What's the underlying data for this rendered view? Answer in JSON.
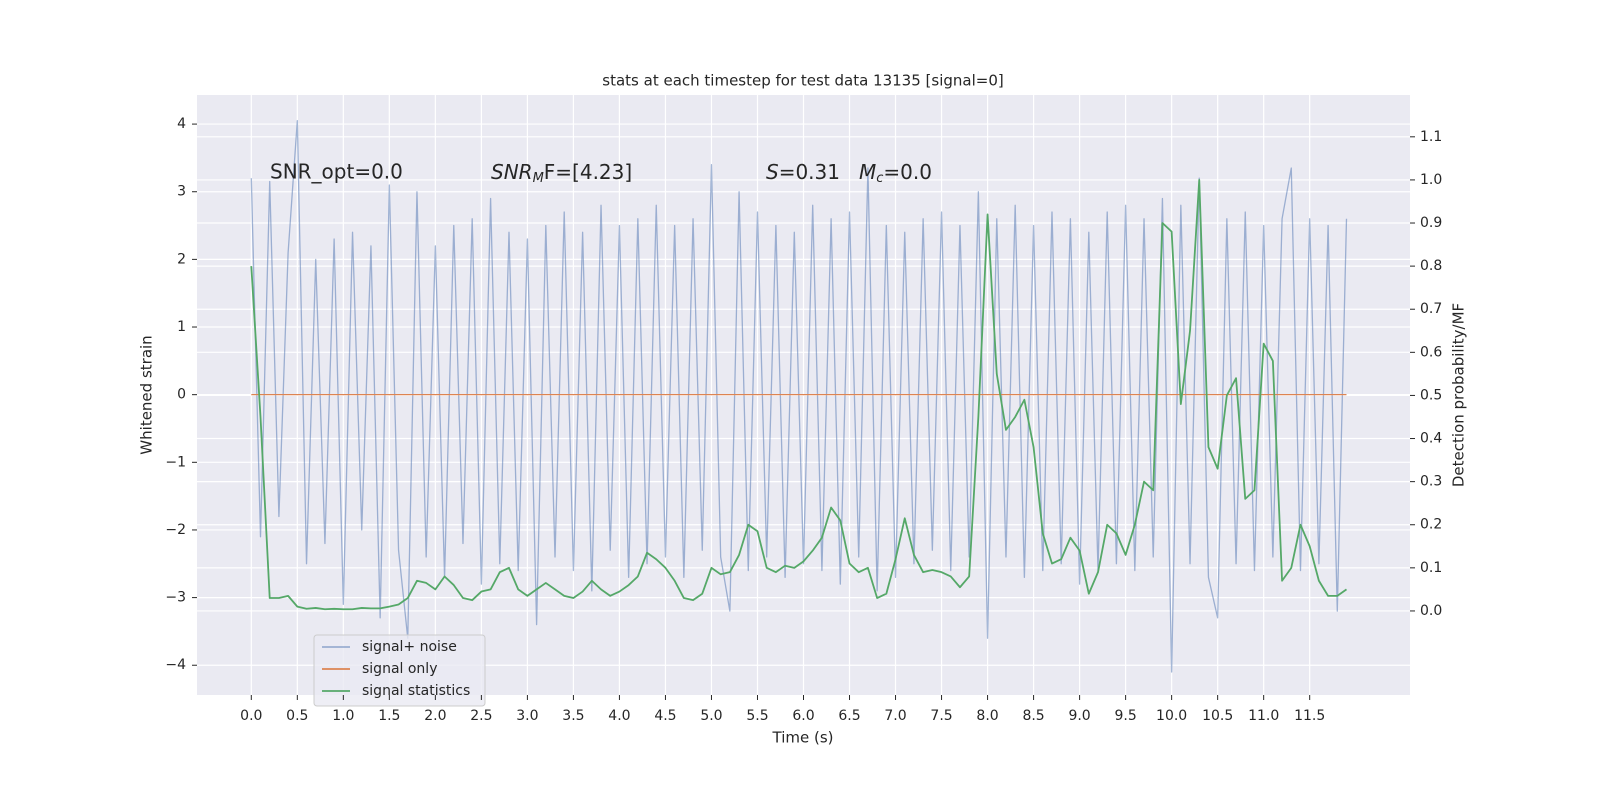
{
  "chart_data": {
    "type": "line",
    "title": "stats at each timestep for test data 13135 [signal=0]",
    "xlabel": "Time (s)",
    "ylabel": "Whitened strain",
    "y2label": "Detection probability/MF",
    "annotations": [
      "SNR_opt=0.0",
      [
        "SNR",
        "M",
        "F=[4.23]"
      ],
      [
        "S",
        "=0.31"
      ],
      [
        "M",
        "c",
        "=0.0"
      ]
    ],
    "x": [
      0.0,
      0.1,
      0.2,
      0.3,
      0.4,
      0.5,
      0.6,
      0.7,
      0.8,
      0.9,
      1.0,
      1.1,
      1.2,
      1.3,
      1.4,
      1.5,
      1.6,
      1.7,
      1.8,
      1.9,
      2.0,
      2.1,
      2.2,
      2.3,
      2.4,
      2.5,
      2.6,
      2.7,
      2.8,
      2.9,
      3.0,
      3.1,
      3.2,
      3.3,
      3.4,
      3.5,
      3.6,
      3.7,
      3.8,
      3.9,
      4.0,
      4.1,
      4.2,
      4.3,
      4.4,
      4.5,
      4.6,
      4.7,
      4.8,
      4.9,
      5.0,
      5.1,
      5.2,
      5.3,
      5.4,
      5.5,
      5.6,
      5.7,
      5.8,
      5.9,
      6.0,
      6.1,
      6.2,
      6.3,
      6.4,
      6.5,
      6.6,
      6.7,
      6.8,
      6.9,
      7.0,
      7.1,
      7.2,
      7.3,
      7.4,
      7.5,
      7.6,
      7.7,
      7.8,
      7.9,
      8.0,
      8.1,
      8.2,
      8.3,
      8.4,
      8.5,
      8.6,
      8.7,
      8.8,
      8.9,
      9.0,
      9.1,
      9.2,
      9.3,
      9.4,
      9.5,
      9.6,
      9.7,
      9.8,
      9.9,
      10.0,
      10.1,
      10.2,
      10.3,
      10.4,
      10.5,
      10.6,
      10.7,
      10.8,
      10.9,
      11.0,
      11.1,
      11.2,
      11.3,
      11.4,
      11.5,
      11.6,
      11.7,
      11.8,
      11.9
    ],
    "series": [
      {
        "name": "signal+ noise",
        "color": "#4c72b0",
        "opacity": 0.5,
        "values": [
          3.2,
          -2.1,
          3.15,
          -1.8,
          2.1,
          4.05,
          -2.5,
          2.0,
          -2.2,
          2.3,
          -3.1,
          2.4,
          -2.0,
          2.2,
          -3.3,
          3.1,
          -2.3,
          -3.6,
          3.0,
          -2.4,
          2.2,
          -2.7,
          2.5,
          -2.2,
          2.6,
          -2.8,
          2.9,
          -2.5,
          2.4,
          -2.6,
          2.3,
          -3.4,
          2.5,
          -2.4,
          2.7,
          -2.6,
          2.4,
          -2.9,
          2.8,
          -2.3,
          2.5,
          -2.7,
          2.6,
          -2.5,
          2.8,
          -2.4,
          2.5,
          -2.7,
          2.6,
          -2.3,
          3.4,
          -2.4,
          -3.2,
          3.0,
          -2.6,
          2.7,
          -2.4,
          2.5,
          -2.7,
          2.4,
          -2.5,
          2.8,
          -2.6,
          2.6,
          -2.8,
          2.7,
          -2.4,
          3.35,
          -2.9,
          2.5,
          -2.7,
          2.4,
          -2.5,
          2.6,
          -2.3,
          2.7,
          -2.6,
          2.5,
          -2.4,
          3.0,
          -3.6,
          2.6,
          -2.4,
          2.8,
          -2.7,
          2.5,
          -2.6,
          2.7,
          -2.5,
          2.6,
          -2.8,
          2.4,
          -2.6,
          2.7,
          -2.5,
          2.8,
          -2.6,
          2.6,
          -2.4,
          2.9,
          -4.1,
          2.8,
          -2.5,
          3.2,
          -2.7,
          -3.3,
          2.6,
          -2.5,
          2.7,
          -2.6,
          2.5,
          -2.4,
          2.6,
          3.35,
          -2.6,
          2.6,
          -2.5,
          2.5,
          -3.2,
          2.6
        ]
      },
      {
        "name": "signal only",
        "color": "#dd8452",
        "opacity": 1,
        "x": [
          0.0,
          11.9
        ],
        "values": [
          0,
          0
        ]
      },
      {
        "name": "signal statistics",
        "color": "#55a868",
        "opacity": 1,
        "axis": "y2",
        "values": [
          0.8,
          0.45,
          0.03,
          0.03,
          0.035,
          0.01,
          0.005,
          0.007,
          0.004,
          0.005,
          0.004,
          0.004,
          0.007,
          0.006,
          0.006,
          0.01,
          0.015,
          0.03,
          0.07,
          0.065,
          0.05,
          0.08,
          0.06,
          0.03,
          0.025,
          0.045,
          0.05,
          0.09,
          0.1,
          0.05,
          0.035,
          0.05,
          0.065,
          0.05,
          0.035,
          0.03,
          0.045,
          0.07,
          0.05,
          0.035,
          0.045,
          0.06,
          0.08,
          0.135,
          0.12,
          0.1,
          0.07,
          0.03,
          0.025,
          0.04,
          0.1,
          0.085,
          0.09,
          0.13,
          0.2,
          0.185,
          0.1,
          0.09,
          0.105,
          0.1,
          0.115,
          0.14,
          0.17,
          0.24,
          0.21,
          0.11,
          0.09,
          0.1,
          0.03,
          0.04,
          0.12,
          0.215,
          0.13,
          0.09,
          0.095,
          0.09,
          0.08,
          0.055,
          0.08,
          0.45,
          0.92,
          0.55,
          0.42,
          0.45,
          0.49,
          0.38,
          0.18,
          0.11,
          0.12,
          0.17,
          0.14,
          0.04,
          0.09,
          0.2,
          0.18,
          0.13,
          0.2,
          0.3,
          0.28,
          0.9,
          0.88,
          0.48,
          0.65,
          1.0,
          0.38,
          0.33,
          0.5,
          0.54,
          0.26,
          0.28,
          0.62,
          0.58,
          0.07,
          0.1,
          0.2,
          0.15,
          0.07,
          0.035,
          0.035,
          0.05
        ]
      }
    ],
    "xlim": [
      -0.59,
      12.59
    ],
    "xticks": [
      {
        "value": 0,
        "label": "0.0"
      },
      0.5,
      {
        "value": 1,
        "label": "1.0"
      },
      1.5,
      {
        "value": 2,
        "label": "2.0"
      },
      2.5,
      {
        "value": 3,
        "label": "3.0"
      },
      3.5,
      {
        "value": 4,
        "label": "4.0"
      },
      4.5,
      {
        "value": 5,
        "label": "5.0"
      },
      5.5,
      {
        "value": 6,
        "label": "6.0"
      },
      6.5,
      {
        "value": 7,
        "label": "7.0"
      },
      7.5,
      {
        "value": 8,
        "label": "8.0"
      },
      8.5,
      {
        "value": 9,
        "label": "9.0"
      },
      9.5,
      {
        "value": 10,
        "label": "10.0"
      },
      10.5,
      {
        "value": 11,
        "label": "11.0"
      },
      11.5
    ],
    "ylim": [
      -4.44,
      4.43
    ],
    "yticks": [
      {
        "value": -4,
        "label": "−4"
      },
      {
        "value": -3,
        "label": "−3"
      },
      {
        "value": -2,
        "label": "−2"
      },
      {
        "value": -1,
        "label": "−1"
      },
      0,
      1,
      2,
      3,
      4
    ],
    "y2lim": [
      -0.195,
      1.197
    ],
    "y2ticks": [
      {
        "value": 0,
        "label": "0.0"
      },
      0.1,
      0.2,
      0.3,
      0.4,
      0.5,
      0.6,
      0.7,
      0.8,
      0.9,
      {
        "value": 1,
        "label": "1.0"
      },
      1.1
    ],
    "grid": true,
    "legend": "lower left"
  }
}
